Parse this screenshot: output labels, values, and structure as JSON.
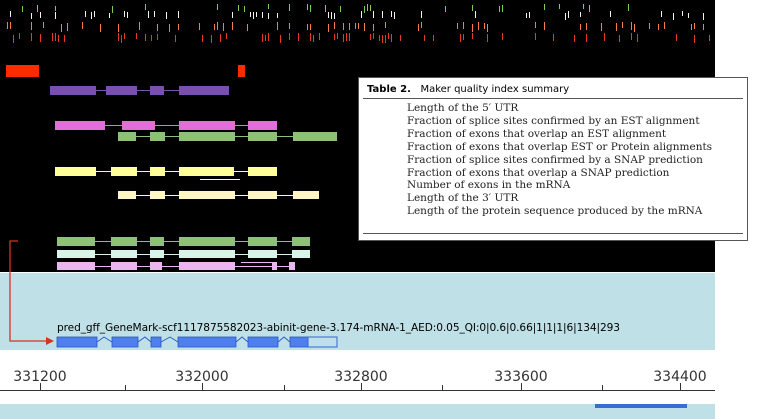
{
  "table": {
    "caption_label": "Table 2.",
    "caption_title": "Maker quality index summary",
    "rows": [
      "Length of the 5′ UTR",
      "Fraction of splice sites confirmed by an EST alignment",
      "Fraction of exons that overlap an EST alignment",
      "Fraction of exons that overlap EST or Protein alignments",
      "Fraction of splice sites confirmed by a SNAP prediction",
      "Fraction of exons that overlap a SNAP prediction",
      "Number of exons in the mRNA",
      "Length of the 3′ UTR",
      "Length of the protein sequence produced by the mRNA"
    ]
  },
  "gene_model": {
    "label": "pred_gff_GeneMark-scf1117875582023-abinit-gene-3.174-mRNA-1_AED:0.05_QI:0|0.6|0.66|1|1|1|6|134|293"
  },
  "ruler": {
    "labels": [
      "331200",
      "332000",
      "332800",
      "333600",
      "334400"
    ]
  },
  "colors": {
    "background": "#000000",
    "detail_panel": "#bfe0e6",
    "callout_arrow": "#d9321e",
    "model_feature": "#4f7fe8",
    "purple_track": "#7a4fb0",
    "magenta_track": "#e070d8",
    "green_track": "#8ec07a",
    "yellow_track": "#ffff99",
    "cream_track": "#fff6c8",
    "red_track": "#ff2a00"
  }
}
